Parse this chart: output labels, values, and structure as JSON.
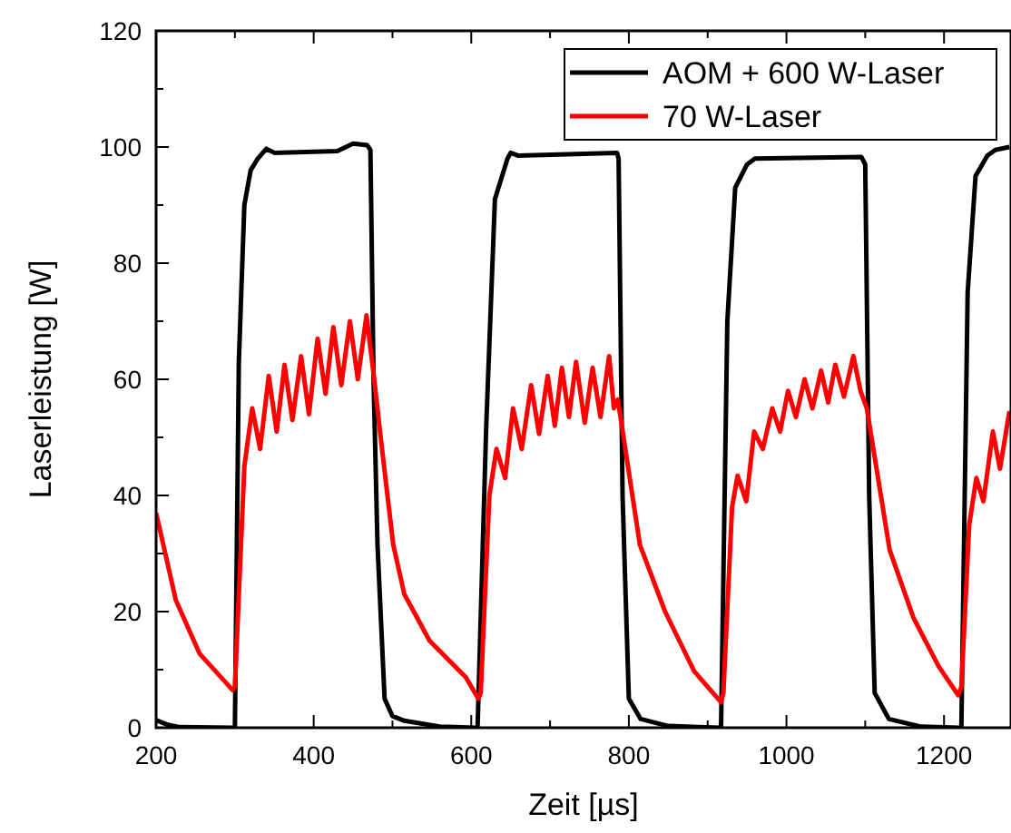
{
  "chart_data": {
    "type": "line",
    "xlabel": "Zeit [µs]",
    "ylabel": "Laserleistung [W]",
    "xlim": [
      200,
      1285
    ],
    "ylim": [
      0,
      120
    ],
    "xticks": [
      200,
      {
        "value": 300,
        "label": null
      },
      400,
      {
        "value": 500,
        "label": null
      },
      600,
      {
        "value": 700,
        "label": null
      },
      800,
      {
        "value": 900,
        "label": null
      },
      1000,
      {
        "value": 1100,
        "label": null
      },
      1200
    ],
    "yticks": [
      0,
      {
        "value": 10,
        "label": null
      },
      20,
      {
        "value": 30,
        "label": null
      },
      40,
      {
        "value": 50,
        "label": null
      },
      60,
      {
        "value": 70,
        "label": null
      },
      80,
      {
        "value": 90,
        "label": null
      },
      100,
      {
        "value": 110,
        "label": null
      },
      120
    ],
    "grid": false,
    "legend": "top right",
    "line_style": "solid",
    "marker": "none",
    "series": [
      {
        "name": "AOM + 600 W-Laser",
        "color": "#000000",
        "x": [
          200,
          215,
          230,
          298,
          300,
          305,
          312,
          320,
          329,
          340,
          350,
          430,
          450,
          468,
          472,
          476,
          481,
          490,
          500,
          515,
          560,
          605,
          608,
          619,
          630,
          646,
          650,
          660,
          785,
          787,
          792,
          800,
          815,
          850,
          915,
          917,
          925,
          935,
          950,
          960,
          1095,
          1100,
          1105,
          1112,
          1130,
          1170,
          1218,
          1222,
          1230,
          1240,
          1255,
          1265,
          1283
        ],
        "values": [
          1.3,
          0.5,
          0.1,
          0,
          0,
          63,
          90,
          96,
          98,
          99.7,
          99,
          99.3,
          100.6,
          100.3,
          99.5,
          60,
          31.5,
          5,
          2,
          1.2,
          0.2,
          0,
          0,
          52,
          91,
          98,
          99,
          98.5,
          99,
          98,
          40,
          5,
          1.5,
          0.3,
          0,
          0,
          70,
          93,
          97,
          98,
          98.3,
          97,
          40,
          6,
          1.5,
          0.2,
          0,
          0,
          75,
          95,
          98.5,
          99.5,
          100
        ]
      },
      {
        "name": "70 W-Laser",
        "color": "#ff0000",
        "x": [
          200,
          225,
          255,
          297,
          300,
          312,
          322,
          332,
          343,
          353,
          363,
          373,
          384,
          394,
          405,
          415,
          425,
          435,
          446,
          456,
          467,
          476,
          485,
          501,
          515,
          547,
          593,
          609,
          612,
          623,
          632,
          643,
          653,
          664,
          676,
          686,
          697,
          706,
          715,
          724,
          733,
          744,
          754,
          764,
          775,
          781,
          786,
          814,
          846,
          883,
          917,
          920,
          931,
          938,
          949,
          959,
          970,
          982,
          992,
          1002,
          1012,
          1023,
          1033,
          1044,
          1053,
          1062,
          1073,
          1085,
          1094,
          1102,
          1131,
          1161,
          1193,
          1218,
          1222,
          1232,
          1241,
          1250,
          1262,
          1271,
          1283
        ],
        "values": [
          37,
          22,
          12.8,
          6.5,
          7,
          45,
          55,
          48,
          60.6,
          51,
          62.5,
          53,
          64,
          54,
          67,
          57.5,
          69,
          59,
          70,
          60,
          71,
          61,
          50,
          31.5,
          23,
          15,
          8.7,
          5,
          6,
          40,
          48,
          43,
          55,
          48,
          59,
          50.6,
          60.6,
          52,
          62,
          53.5,
          63,
          52.5,
          62,
          53.5,
          64,
          55,
          56.5,
          31.5,
          20,
          9.7,
          4.4,
          6,
          38,
          43.4,
          39,
          51,
          48,
          55,
          51,
          58,
          53.5,
          60,
          55,
          61.5,
          56,
          62.5,
          57,
          64,
          58,
          55,
          30.6,
          19,
          10.6,
          5.6,
          7,
          35,
          43,
          39,
          51,
          44.6,
          54.5
        ]
      }
    ]
  }
}
